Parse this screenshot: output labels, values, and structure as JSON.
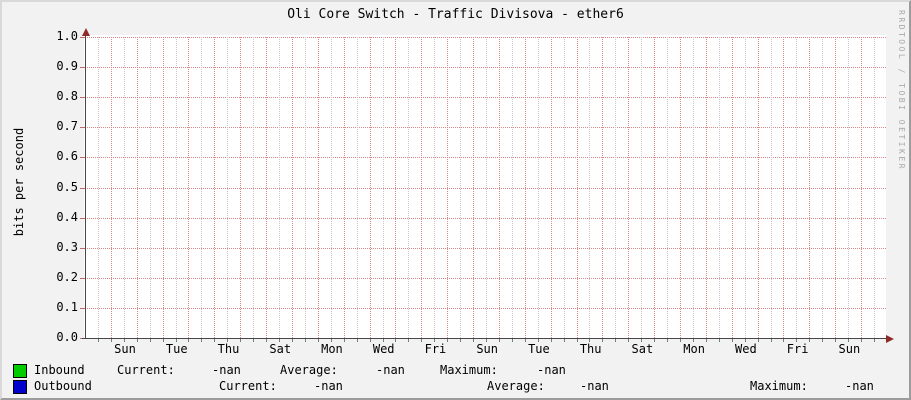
{
  "title": "Oli Core Switch - Traffic Divisova - ether6",
  "watermark": "RRDTOOL / TOBI OETIKER",
  "chart_data": {
    "type": "line",
    "title": "Oli Core Switch - Traffic Divisova - ether6",
    "xlabel": "",
    "ylabel": "bits per second",
    "ylim": [
      0.0,
      1.0
    ],
    "grid": "on",
    "legend_position": "bottom",
    "y_ticks": [
      "1.0",
      "0.9",
      "0.8",
      "0.7",
      "0.6",
      "0.5",
      "0.4",
      "0.3",
      "0.2",
      "0.1",
      "0.0"
    ],
    "x_ticks": [
      "Sun",
      "Tue",
      "Thu",
      "Sat",
      "Mon",
      "Wed",
      "Fri",
      "Sun",
      "Tue",
      "Thu",
      "Sat",
      "Mon",
      "Wed",
      "Fri",
      "Sun"
    ],
    "series": [
      {
        "name": "Inbound",
        "color": "#00cc00",
        "values": []
      },
      {
        "name": "Outbound",
        "color": "#0000cc",
        "values": []
      }
    ]
  },
  "legend": {
    "inbound": {
      "name": "Inbound",
      "color": "#00cc00",
      "current_label": "Current:",
      "current_value": "-nan",
      "average_label": "Average:",
      "average_value": "-nan",
      "maximum_label": "Maximum:",
      "maximum_value": "-nan"
    },
    "outbound": {
      "name": "Outbound",
      "color": "#0000cc",
      "current_label": "Current:",
      "current_value": "-nan",
      "average_label": "Average:",
      "average_value": "-nan",
      "maximum_label": "Maximum:",
      "maximum_value": "-nan"
    }
  }
}
